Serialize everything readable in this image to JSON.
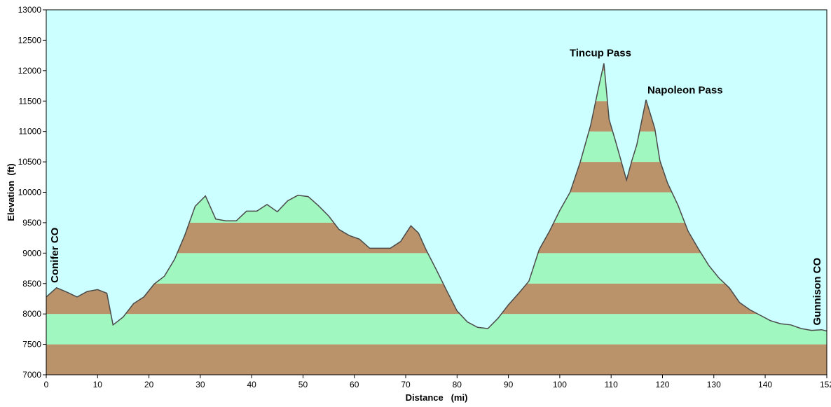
{
  "chart_data": {
    "type": "area",
    "xlabel": "Distance   (mi)",
    "ylabel": "Elevation  (ft)",
    "xlim": [
      0,
      152
    ],
    "ylim": [
      7000,
      13000
    ],
    "x_ticks": [
      0,
      10,
      20,
      30,
      40,
      50,
      60,
      70,
      80,
      90,
      100,
      110,
      120,
      130,
      140,
      152
    ],
    "y_ticks": [
      7000,
      7500,
      8000,
      8500,
      9000,
      9500,
      10000,
      10500,
      11000,
      11500,
      12000,
      12500,
      13000
    ],
    "band_interval": 500,
    "grid": false,
    "colors": {
      "background": "#ccffff",
      "band_light": "#a0f8c0",
      "band_dark": "#bb936b",
      "line": "#4a4a4a"
    },
    "series": [
      {
        "x": [
          0,
          2,
          4,
          6,
          8,
          10,
          11.8,
          13,
          15,
          17,
          19,
          21,
          23,
          25,
          27,
          29,
          31,
          33,
          35,
          37,
          39,
          41,
          43,
          45,
          47,
          49,
          51,
          53,
          55,
          57,
          59,
          61,
          63,
          65,
          67,
          69,
          71,
          72.5,
          74,
          76,
          78,
          80,
          82,
          84,
          86,
          88,
          90,
          92,
          94,
          96,
          98,
          100,
          102,
          104,
          106,
          107.5,
          108.6,
          109.6,
          111,
          112,
          113,
          114,
          115,
          116.8,
          118.5,
          119.5,
          121,
          123,
          125,
          127,
          129,
          131,
          133,
          135,
          137,
          139,
          141,
          143,
          145,
          147,
          149,
          151,
          152
        ],
        "y": [
          8280,
          8430,
          8360,
          8280,
          8370,
          8400,
          8340,
          7820,
          7950,
          8170,
          8280,
          8490,
          8620,
          8900,
          9300,
          9770,
          9940,
          9560,
          9530,
          9530,
          9690,
          9690,
          9800,
          9680,
          9860,
          9950,
          9930,
          9780,
          9610,
          9390,
          9290,
          9230,
          9080,
          9080,
          9080,
          9190,
          9450,
          9330,
          9050,
          8720,
          8380,
          8050,
          7870,
          7780,
          7760,
          7930,
          8150,
          8340,
          8540,
          9060,
          9360,
          9700,
          10000,
          10500,
          11100,
          11700,
          12120,
          11200,
          10800,
          10500,
          10200,
          10510,
          10780,
          11520,
          11050,
          10520,
          10150,
          9790,
          9360,
          9070,
          8800,
          8590,
          8430,
          8190,
          8070,
          7980,
          7890,
          7840,
          7820,
          7760,
          7730,
          7740,
          7720
        ]
      }
    ],
    "annotations": [
      {
        "text": "Tincup Pass",
        "x": 108.6,
        "y": 12120
      },
      {
        "text": "Napoleon Pass",
        "x": 116.8,
        "y": 11520
      },
      {
        "text": "Conifer CO",
        "x": 0,
        "y": 8280
      },
      {
        "text": "Gunnison CO",
        "x": 152,
        "y": 7720
      }
    ]
  }
}
